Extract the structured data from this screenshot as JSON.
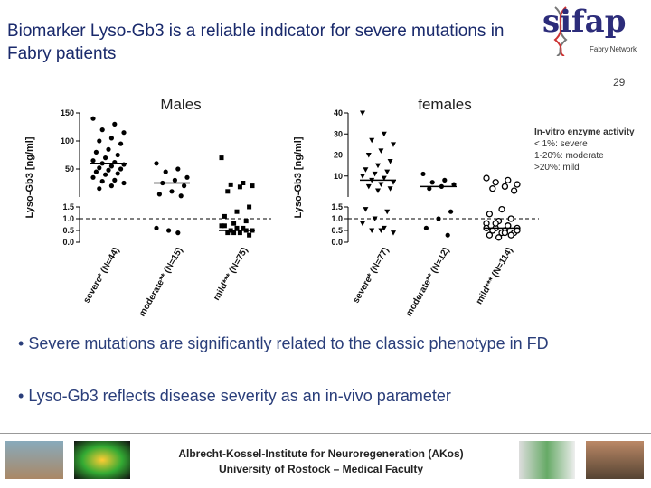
{
  "header": {
    "title": "Biomarker Lyso-Gb3 is a reliable indicator for severe mutations  in Fabry patients",
    "logo": "sifap",
    "logo_subtitle": "Fabry Network",
    "slide_number": "29"
  },
  "charts": [
    {
      "type": "dot",
      "title": "Males",
      "y_label": "Lyso-Gb3 [ng/ml]",
      "ylim": [
        0,
        150
      ],
      "axis_break": 1.5,
      "threshold": 1.0,
      "yticks": [
        {
          "value": 0,
          "label": "0.0"
        },
        0.5,
        {
          "value": 1,
          "label": "1.0"
        },
        1.5,
        50,
        100,
        150
      ],
      "categories": [
        "severe* (N=44)",
        "moderate** (N=15)",
        "mild*** (N=75)"
      ],
      "groups": [
        {
          "marker": "circle",
          "mean": 60,
          "values": [
            140,
            130,
            120,
            115,
            105,
            100,
            95,
            85,
            80,
            75,
            70,
            65,
            62,
            60,
            58,
            55,
            52,
            50,
            48,
            45,
            42,
            40,
            35,
            30,
            28,
            25,
            20,
            15
          ]
        },
        {
          "marker": "circle",
          "mean": 25,
          "values": [
            60,
            50,
            45,
            35,
            30,
            25,
            20,
            10,
            5,
            2,
            0.5,
            0.6,
            0.4
          ]
        },
        {
          "marker": "square",
          "mean": 0.5,
          "values": [
            70,
            25,
            22,
            20,
            18,
            10,
            1.5,
            1.3,
            1.1,
            0.9,
            0.8,
            0.7,
            0.6,
            0.5,
            0.5,
            0.4,
            0.4,
            0.3,
            0.6,
            0.7,
            0.5,
            0.4
          ]
        }
      ]
    },
    {
      "type": "dot",
      "title": "females",
      "y_label": "Lyso-Gb3 [ng/ml]",
      "ylim": [
        0,
        40
      ],
      "axis_break": 1.5,
      "threshold": 1.0,
      "yticks": [
        {
          "value": 0,
          "label": "0.0"
        },
        0.5,
        {
          "value": 1,
          "label": "1.0"
        },
        1.5,
        10,
        20,
        30,
        40
      ],
      "categories": [
        "severe* (N=77)",
        "moderate** (N=12)",
        "mild*** (N=114)"
      ],
      "groups": [
        {
          "marker": "triangle-down",
          "mean": 8,
          "values": [
            40,
            30,
            27,
            25,
            22,
            20,
            17,
            15,
            13,
            12,
            11,
            10,
            9,
            8,
            7,
            6,
            5,
            4,
            3,
            1.4,
            1.3,
            1.0,
            0.8,
            0.6,
            0.5,
            0.4,
            0.5
          ]
        },
        {
          "marker": "circle",
          "mean": 5,
          "values": [
            11,
            8,
            7,
            6,
            5,
            4,
            1.3,
            1.0,
            0.6,
            0.3
          ]
        },
        {
          "marker": "circle-open",
          "mean": 0.6,
          "values": [
            9,
            8,
            7,
            6,
            5,
            4,
            3,
            1.4,
            1.2,
            1.0,
            0.9,
            0.8,
            0.7,
            0.6,
            0.6,
            0.5,
            0.5,
            0.4,
            0.4,
            0.3,
            0.3,
            0.2,
            0.6,
            0.7,
            0.8,
            0.5,
            0.4
          ]
        }
      ]
    }
  ],
  "legend": {
    "title": "In-vitro enzyme activity",
    "lines": [
      "< 1%: severe",
      "1-20%: moderate",
      ">20%: mild"
    ]
  },
  "bullets": [
    "Severe mutations are significantly related to the classic phenotype in FD",
    "Lyso-Gb3 reflects disease severity as an in-vivo parameter"
  ],
  "footer": {
    "lines": [
      "Albrecht-Kossel-Institute for Neuroregeneration (AKos)",
      "University of Rostock – Medical Faculty"
    ]
  }
}
